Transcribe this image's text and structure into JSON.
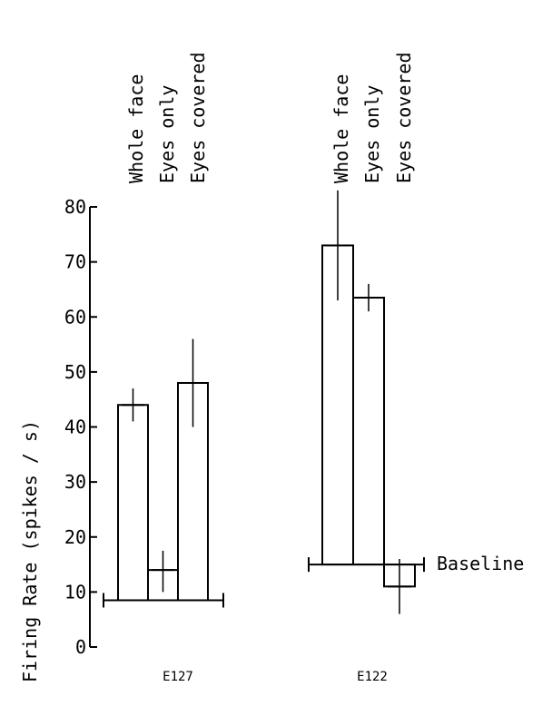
{
  "chart_data": {
    "type": "bar",
    "ylabel": "Firing    Rate (spikes / s)",
    "ylim": [
      0,
      80
    ],
    "yticks": [
      0,
      10,
      20,
      30,
      40,
      50,
      60,
      70,
      80
    ],
    "grid": false,
    "categories": [
      "Whole face",
      "Eyes only",
      "Eyes covered"
    ],
    "groups": [
      {
        "name": "E127",
        "baseline": 8.5,
        "values": [
          44,
          14,
          48
        ],
        "error": [
          [
            41,
            47
          ],
          [
            10,
            17.5
          ],
          [
            40,
            56
          ]
        ]
      },
      {
        "name": "E122",
        "baseline": 15,
        "values": [
          73,
          63.5,
          11
        ],
        "error": [
          [
            63,
            83
          ],
          [
            61,
            66
          ],
          [
            6,
            16
          ]
        ]
      }
    ],
    "annotations": [
      "Baseline"
    ]
  }
}
